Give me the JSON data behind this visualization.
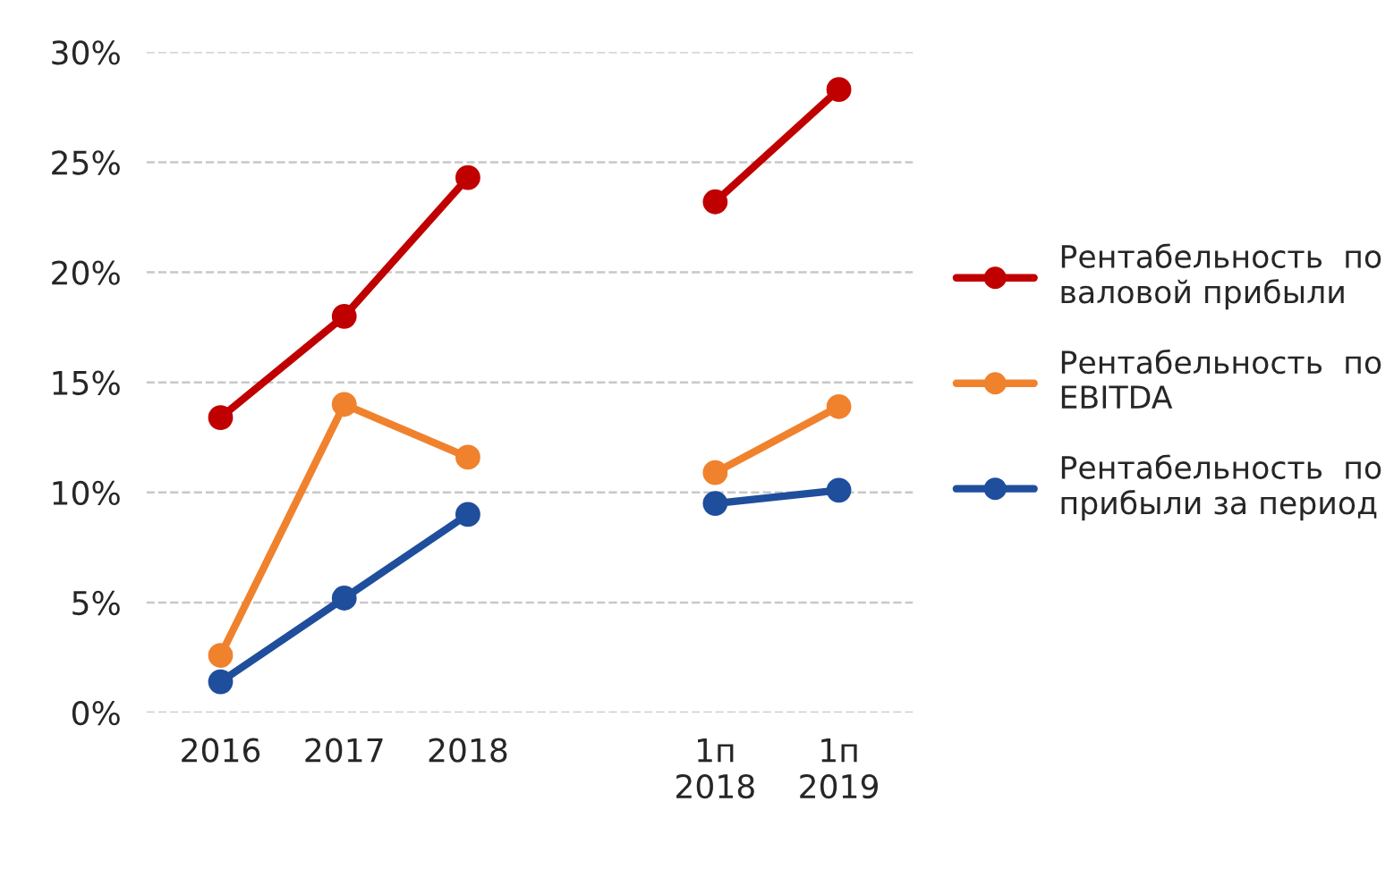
{
  "chart_data": {
    "type": "line",
    "categories": [
      "2016",
      "2017",
      "2018",
      null,
      "1п\n2018",
      "1п\n2019"
    ],
    "series": [
      {
        "name": "Рентабельность  по\nваловой прибыли",
        "color": "#c00000",
        "values": [
          13.4,
          18.0,
          24.3,
          null,
          23.2,
          28.3
        ]
      },
      {
        "name": "Рентабельность  по\nEBITDA",
        "color": "#f0822e",
        "values": [
          2.6,
          14.0,
          11.6,
          null,
          10.9,
          13.9
        ]
      },
      {
        "name": "Рентабельность  по\nприбыли за период",
        "color": "#1f4e9c",
        "values": [
          1.4,
          5.2,
          9.0,
          null,
          9.5,
          10.1
        ]
      }
    ],
    "ylim": [
      0,
      30
    ],
    "yticks": [
      {
        "value": 0,
        "label": "0%"
      },
      {
        "value": 5,
        "label": "5%"
      },
      {
        "value": 10,
        "label": "10%"
      },
      {
        "value": 15,
        "label": "15%"
      },
      {
        "value": 20,
        "label": "20%"
      },
      {
        "value": 25,
        "label": "25%"
      },
      {
        "value": 30,
        "label": "30%"
      }
    ],
    "grid": "y",
    "legend": "right",
    "marker": "circle",
    "line_style": "solid"
  }
}
